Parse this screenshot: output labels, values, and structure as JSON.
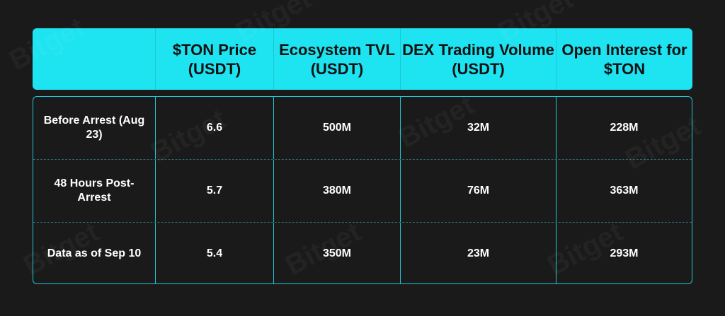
{
  "watermark_text": "Bitget",
  "table": {
    "headers": [
      "",
      "$TON Price (USDT)",
      "Ecosystem TVL (USDT)",
      "DEX Trading Volume (USDT)",
      "Open Interest for $TON"
    ],
    "rows": [
      {
        "label": "Before Arrest (Aug 23)",
        "price": "6.6",
        "tvl": "500M",
        "dex": "32M",
        "oi": "228M"
      },
      {
        "label": "48 Hours Post-Arrest",
        "price": "5.7",
        "tvl": "380M",
        "dex": "76M",
        "oi": "363M"
      },
      {
        "label": "Data as of Sep 10",
        "price": "5.4",
        "tvl": "350M",
        "dex": "23M",
        "oi": "293M"
      }
    ]
  },
  "colors": {
    "header_bg": "#1ee3f1",
    "border": "#1ec6d3",
    "background": "#1a1a1a"
  }
}
